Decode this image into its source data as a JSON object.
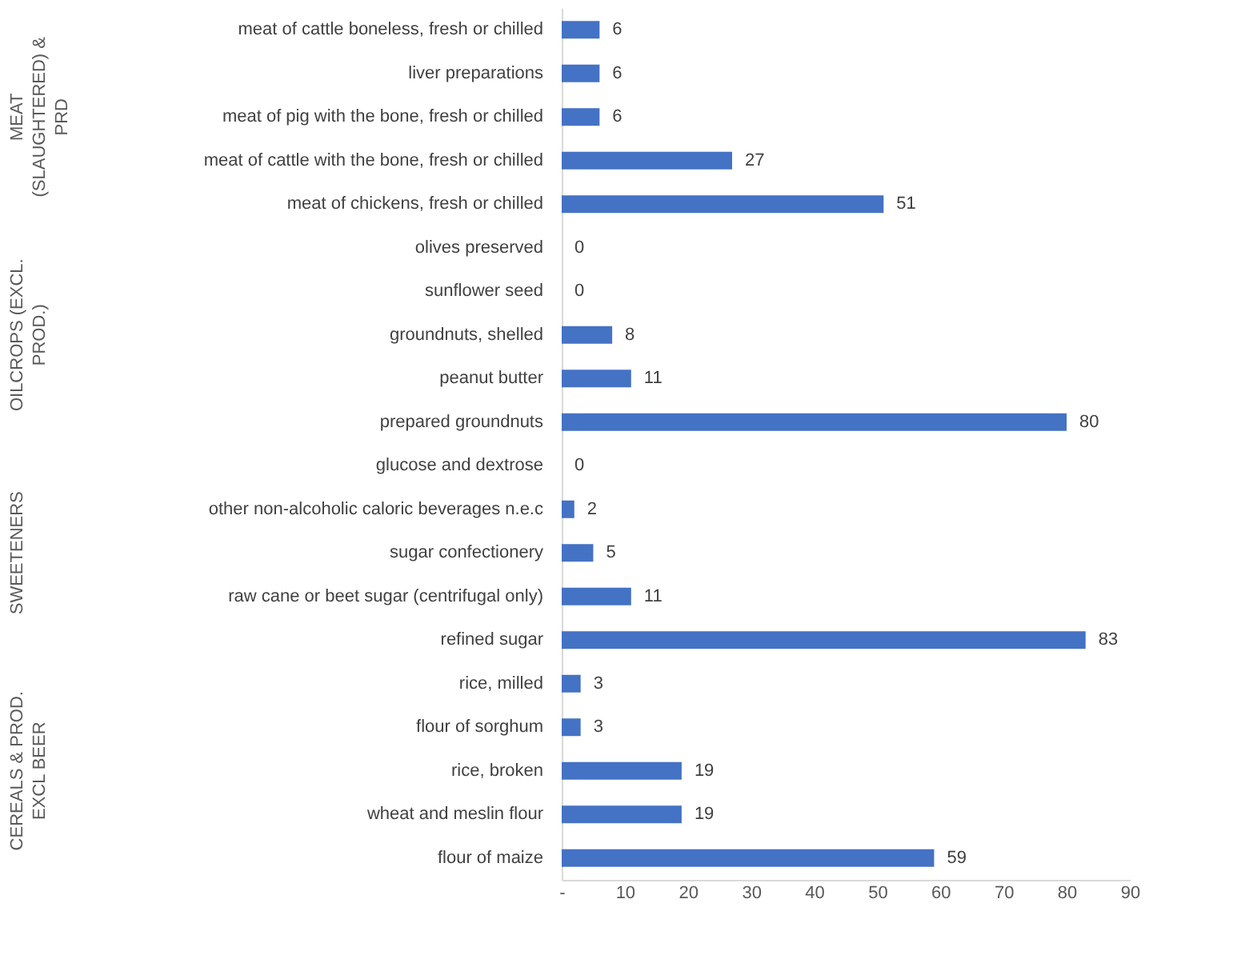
{
  "chart_data": {
    "type": "bar",
    "orientation": "horizontal",
    "color": "#4472c4",
    "data_labels": true,
    "grid": false,
    "categories": [
      "meat of cattle boneless, fresh or chilled",
      "liver preparations",
      "meat of pig with the bone, fresh or chilled",
      "meat of cattle with the bone, fresh or chilled",
      "meat of chickens, fresh or chilled",
      "olives preserved",
      "sunflower seed",
      "groundnuts, shelled",
      "peanut butter",
      "prepared groundnuts",
      "glucose and dextrose",
      "other non-alcoholic caloric beverages n.e.c",
      "sugar confectionery",
      "raw cane or beet sugar (centrifugal only)",
      "refined sugar",
      "rice, milled",
      "flour of sorghum",
      "rice, broken",
      "wheat and meslin flour",
      "flour of maize"
    ],
    "values": [
      6,
      6,
      6,
      27,
      51,
      0,
      0,
      8,
      11,
      80,
      0,
      2,
      5,
      11,
      83,
      3,
      3,
      19,
      19,
      59
    ],
    "xlim": [
      0,
      90
    ],
    "xticks": [
      {
        "value": 0,
        "label": "-"
      },
      10,
      20,
      30,
      40,
      50,
      60,
      70,
      80,
      90
    ],
    "annotations": [
      "MEAT (SLAUGHTERED) & PRD",
      "OILCROPS (EXCL. PROD.)",
      "SWEETENERS",
      "CEREALS & PROD. EXCL BEER"
    ]
  }
}
